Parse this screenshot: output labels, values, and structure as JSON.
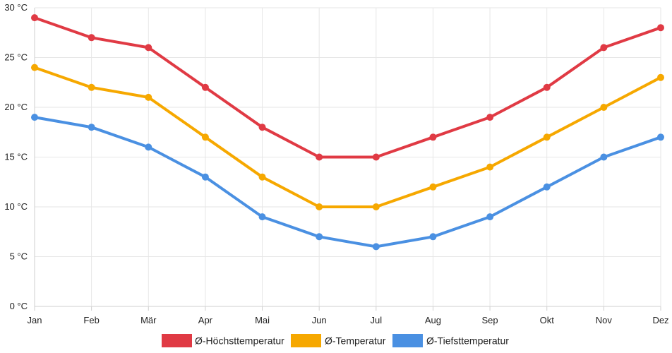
{
  "chart_data": {
    "type": "line",
    "title": "",
    "xlabel": "",
    "ylabel": "",
    "categories": [
      "Jan",
      "Feb",
      "Mär",
      "Apr",
      "Mai",
      "Jun",
      "Jul",
      "Aug",
      "Sep",
      "Okt",
      "Nov",
      "Dez"
    ],
    "ylim": [
      0,
      30
    ],
    "yticks": [
      {
        "value": 0,
        "label": "0 °C"
      },
      {
        "value": 5,
        "label": "5 °C"
      },
      {
        "value": 10,
        "label": "10 °C"
      },
      {
        "value": 15,
        "label": "15 °C"
      },
      {
        "value": 20,
        "label": "20 °C"
      },
      {
        "value": 25,
        "label": "25 °C"
      },
      {
        "value": 30,
        "label": "30 °C"
      }
    ],
    "grid": true,
    "legend_position": "bottom",
    "series": [
      {
        "name": "Ø-Höchsttemperatur",
        "color": "#e03a44",
        "values": [
          29,
          27,
          26,
          22,
          18,
          15,
          15,
          17,
          19,
          22,
          26,
          28
        ]
      },
      {
        "name": "Ø-Temperatur",
        "color": "#f6a800",
        "values": [
          24,
          22,
          21,
          17,
          13,
          10,
          10,
          12,
          14,
          17,
          20,
          23
        ]
      },
      {
        "name": "Ø-Tiefsttemperatur",
        "color": "#4a90e2",
        "values": [
          19,
          18,
          16,
          13,
          9,
          7,
          6,
          7,
          9,
          12,
          15,
          17
        ]
      }
    ]
  }
}
